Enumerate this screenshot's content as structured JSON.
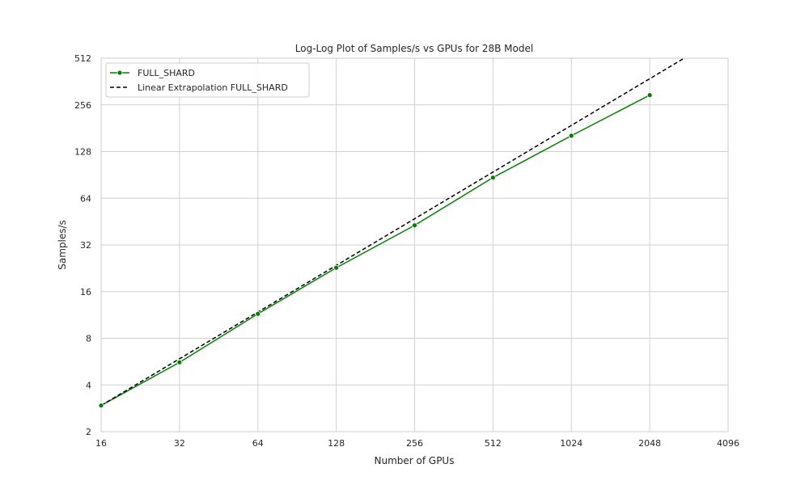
{
  "chart_data": {
    "type": "line",
    "title": "Log-Log Plot of Samples/s vs GPUs for 28B Model",
    "xlabel": "Number of GPUs",
    "ylabel": "Samples/s",
    "x_scale": "log2",
    "y_scale": "log2",
    "xlim": [
      16,
      4096
    ],
    "ylim": [
      2,
      512
    ],
    "x_ticks": [
      16,
      32,
      64,
      128,
      256,
      512,
      1024,
      2048,
      4096
    ],
    "y_ticks": [
      2,
      4,
      8,
      16,
      32,
      64,
      128,
      256,
      512
    ],
    "x_tick_labels": [
      "16",
      "32",
      "64",
      "128",
      "256",
      "512",
      "1024",
      "2048",
      "4096"
    ],
    "y_tick_labels": [
      "2",
      "4",
      "8",
      "16",
      "32",
      "64",
      "128",
      "256",
      "512"
    ],
    "grid": true,
    "legend_position": "upper-left",
    "series": [
      {
        "name": "FULL_SHARD",
        "style": "solid",
        "marker": "circle",
        "color": "#008000",
        "x": [
          16,
          32,
          64,
          128,
          256,
          512,
          1024,
          2048
        ],
        "y": [
          2.95,
          5.6,
          11.5,
          22.8,
          42.8,
          87.0,
          162.0,
          296.0
        ]
      },
      {
        "name": "Linear Extrapolation FULL_SHARD",
        "style": "dashed",
        "marker": "none",
        "color": "#000000",
        "x": [
          16,
          3000
        ],
        "y": [
          2.95,
          553.0
        ]
      }
    ]
  }
}
